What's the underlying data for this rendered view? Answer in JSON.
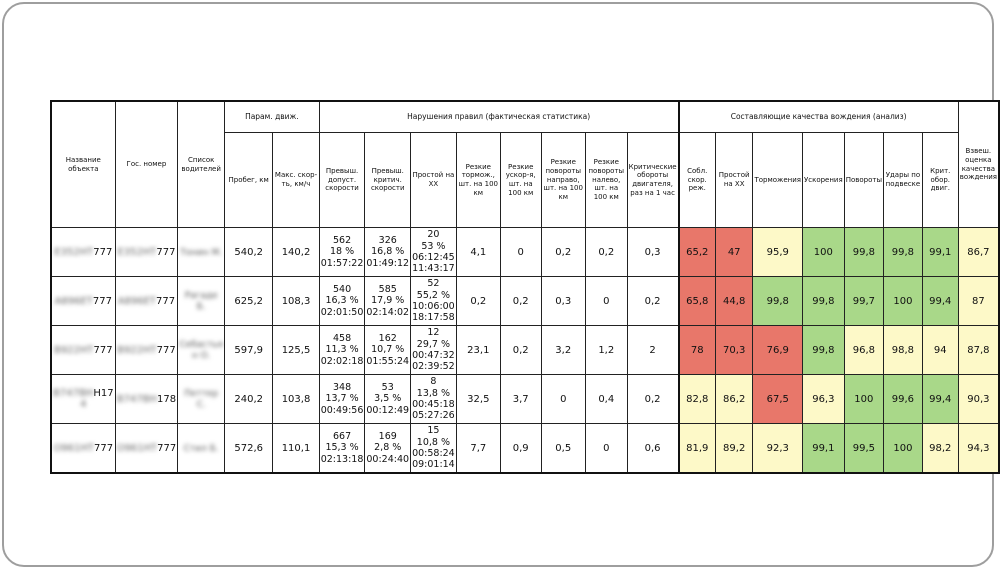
{
  "headers": {
    "object_name": "Название объекта",
    "plate": "Гос. номер",
    "drivers": "Список водителей",
    "group_params": "Парам. движ.",
    "group_violations": "Нарушения правил (фактическая статистика)",
    "group_quality": "Составляющие качества вождения (анализ)",
    "final_score": "Взвеш. оценка качества вождения",
    "sub": [
      "Пробег, км",
      "Макс. скор-ть, км/ч",
      "Превыш. допуст. скорости",
      "Превыш. критич. скорости",
      "Простой на ХХ",
      "Резкие тормож., шт. на 100 км",
      "Резкие ускор-я, шт. на 100 км",
      "Резкие повороты направо, шт. на 100 км",
      "Резкие повороты налево, шт. на 100 км",
      "Критические обороты двигателя, раз на 1 час",
      "Собл. скор. реж.",
      "Простой на ХХ",
      "Торможения",
      "Ускорения",
      "Повороты",
      "Удары по подвеске",
      "Крит. обор. двиг."
    ]
  },
  "rows": [
    {
      "name_suffix": "777",
      "name_blur": "Е352НТ",
      "plate_suffix": "777",
      "plate_blur": "Е352НТ",
      "driver_blur": "Тонин М.",
      "mileage": "540,2",
      "maxspeed": "140,2",
      "speed_over": [
        "562",
        "18 %",
        "01:57:22"
      ],
      "speed_crit": [
        "326",
        "16,8 %",
        "01:49:12"
      ],
      "idle": [
        "20",
        "53 %",
        "06:12:45",
        "11:43:17"
      ],
      "brake": "4,1",
      "accel": "0",
      "turn_r": "0,2",
      "turn_l": "0,2",
      "rpm": "0,3",
      "q_speed": "65,2",
      "q_idle": "47",
      "q_brake": "95,9",
      "q_accel": "100",
      "q_turns": "99,8",
      "q_bumps": "99,8",
      "q_rpm": "99,1",
      "score": "86,7"
    },
    {
      "name_suffix": "777",
      "name_blur": "А896ЕТ",
      "plate_suffix": "777",
      "plate_blur": "А896ЕТ",
      "driver_blur": "Рагаде Б.",
      "mileage": "625,2",
      "maxspeed": "108,3",
      "speed_over": [
        "540",
        "16,3 %",
        "02:01:50"
      ],
      "speed_crit": [
        "585",
        "17,9 %",
        "02:14:02"
      ],
      "idle": [
        "52",
        "55,2 %",
        "10:06:00",
        "18:17:58"
      ],
      "brake": "0,2",
      "accel": "0,2",
      "turn_r": "0,3",
      "turn_l": "0",
      "rpm": "0,2",
      "q_speed": "65,8",
      "q_idle": "44,8",
      "q_brake": "99,8",
      "q_accel": "99,8",
      "q_turns": "99,7",
      "q_bumps": "100",
      "q_rpm": "99,4",
      "score": "87"
    },
    {
      "name_suffix": "777",
      "name_blur": "В922НТ",
      "plate_suffix": "777",
      "plate_blur": "В922НТ",
      "driver_blur": "Себастья н О.",
      "mileage": "597,9",
      "maxspeed": "125,5",
      "speed_over": [
        "458",
        "11,3 %",
        "02:02:18"
      ],
      "speed_crit": [
        "162",
        "10,7 %",
        "01:55:24"
      ],
      "idle": [
        "12",
        "29,7 %",
        "00:47:32",
        "02:39:52"
      ],
      "brake": "23,1",
      "accel": "0,2",
      "turn_r": "3,2",
      "turn_l": "1,2",
      "rpm": "2",
      "q_speed": "78",
      "q_idle": "70,3",
      "q_brake": "76,9",
      "q_accel": "99,8",
      "q_turns": "96,8",
      "q_bumps": "98,8",
      "q_rpm": "94",
      "score": "87,8"
    },
    {
      "name_suffix": "Н17",
      "name_blur": "В747ВН",
      "name_line2": "4",
      "plate_suffix": "178",
      "plate_blur": "В747ВН",
      "driver_blur": "Петтер С.",
      "mileage": "240,2",
      "maxspeed": "103,8",
      "speed_over": [
        "348",
        "13,7 %",
        "00:49:56"
      ],
      "speed_crit": [
        "53",
        "3,5 %",
        "00:12:49"
      ],
      "idle": [
        "8",
        "13,8 %",
        "00:45:18",
        "05:27:26"
      ],
      "brake": "32,5",
      "accel": "3,7",
      "turn_r": "0",
      "turn_l": "0,4",
      "rpm": "0,2",
      "q_speed": "82,8",
      "q_idle": "86,2",
      "q_brake": "67,5",
      "q_accel": "96,3",
      "q_turns": "100",
      "q_bumps": "99,6",
      "q_rpm": "99,4",
      "score": "90,3"
    },
    {
      "name_suffix": "777",
      "name_blur": "О961НТ",
      "plate_suffix": "777",
      "plate_blur": "О961НТ",
      "driver_blur": "Стил Б.",
      "mileage": "572,6",
      "maxspeed": "110,1",
      "speed_over": [
        "667",
        "15,3 %",
        "02:13:18"
      ],
      "speed_crit": [
        "169",
        "2,8 %",
        "00:24:40"
      ],
      "idle": [
        "15",
        "10,8 %",
        "00:58:24",
        "09:01:14"
      ],
      "brake": "7,7",
      "accel": "0,9",
      "turn_r": "0,5",
      "turn_l": "0",
      "rpm": "0,6",
      "q_speed": "81,9",
      "q_idle": "89,2",
      "q_brake": "92,3",
      "q_accel": "99,1",
      "q_turns": "99,5",
      "q_bumps": "100",
      "q_rpm": "98,2",
      "score": "94,3"
    }
  ],
  "colors": {
    "red": "#e8776a",
    "yellow": "#fdf9c8",
    "green": "#a9d889"
  },
  "row_colors": [
    [
      "red",
      "red",
      "yellow",
      "green",
      "green",
      "green",
      "green",
      "yellow"
    ],
    [
      "red",
      "red",
      "green",
      "green",
      "green",
      "green",
      "green",
      "yellow"
    ],
    [
      "red",
      "red",
      "red",
      "green",
      "yellow",
      "yellow",
      "yellow",
      "yellow"
    ],
    [
      "yellow",
      "yellow",
      "red",
      "yellow",
      "green",
      "green",
      "green",
      "yellow"
    ],
    [
      "yellow",
      "yellow",
      "yellow",
      "green",
      "green",
      "green",
      "yellow",
      "yellow"
    ]
  ]
}
